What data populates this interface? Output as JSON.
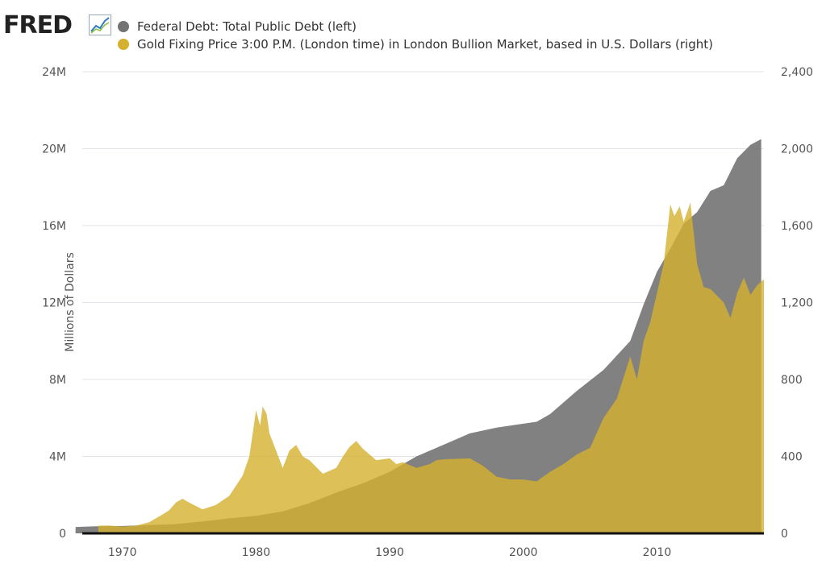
{
  "logo": {
    "text": "FRED",
    "icon": "fred-chart-icon"
  },
  "chart_data": {
    "type": "area",
    "title": "",
    "series": [
      {
        "name": "Federal Debt: Total Public Debt (left)",
        "axis": "left",
        "color": "#737373",
        "x": [
          1966.5,
          1968,
          1970,
          1972,
          1974,
          1976,
          1978,
          1980,
          1982,
          1984,
          1986,
          1988,
          1990,
          1992,
          1994,
          1996,
          1998,
          2000,
          2001,
          2002,
          2004,
          2006,
          2008,
          2009,
          2010,
          2011,
          2012,
          2013,
          2014,
          2015,
          2016,
          2017,
          2017.8
        ],
        "values": [
          0.33,
          0.37,
          0.38,
          0.43,
          0.48,
          0.62,
          0.78,
          0.91,
          1.14,
          1.57,
          2.12,
          2.6,
          3.2,
          4.0,
          4.6,
          5.2,
          5.5,
          5.7,
          5.8,
          6.2,
          7.4,
          8.5,
          10.0,
          11.9,
          13.6,
          14.8,
          16.1,
          16.7,
          17.8,
          18.1,
          19.5,
          20.2,
          20.5
        ]
      },
      {
        "name": "Gold Fixing Price 3:00 P.M. (London time) in London Bullion Market, based in U.S. Dollars (right)",
        "axis": "right",
        "color": "#D4B02E",
        "x": [
          1968.2,
          1969,
          1970,
          1971,
          1972,
          1973,
          1973.5,
          1974,
          1974.5,
          1975,
          1976,
          1977,
          1978,
          1979,
          1979.5,
          1980,
          1980.3,
          1980.5,
          1980.8,
          1981,
          1981.5,
          1982,
          1982.5,
          1983,
          1983.5,
          1984,
          1985,
          1986,
          1986.5,
          1987,
          1987.5,
          1988,
          1989,
          1990,
          1990.5,
          1991,
          1992,
          1993,
          1993.5,
          1994,
          1996,
          1997,
          1998,
          1999,
          2000,
          2001,
          2002,
          2003,
          2004,
          2005,
          2006,
          2007,
          2008,
          2008.5,
          2009,
          2009.5,
          2010,
          2010.5,
          2011,
          2011.3,
          2011.7,
          2012,
          2012.5,
          2013,
          2013.5,
          2014,
          2015,
          2015.5,
          2016,
          2016.5,
          2017,
          2017.5,
          2018
        ],
        "values": [
          40,
          41,
          35,
          40,
          58,
          98,
          120,
          160,
          180,
          160,
          125,
          148,
          195,
          300,
          400,
          640,
          560,
          660,
          620,
          520,
          430,
          340,
          430,
          460,
          400,
          380,
          310,
          340,
          400,
          450,
          480,
          440,
          380,
          390,
          360,
          370,
          340,
          360,
          380,
          385,
          390,
          350,
          295,
          280,
          280,
          270,
          320,
          360,
          410,
          445,
          600,
          700,
          920,
          800,
          1000,
          1100,
          1250,
          1400,
          1710,
          1650,
          1700,
          1620,
          1720,
          1400,
          1280,
          1270,
          1200,
          1120,
          1250,
          1330,
          1240,
          1290,
          1320
        ]
      }
    ],
    "y_left": {
      "label": "Millions of Dollars",
      "min": 0,
      "max": 24,
      "ticks": [
        "0",
        "4M",
        "8M",
        "12M",
        "16M",
        "20M",
        "24M"
      ]
    },
    "y_right": {
      "label": "",
      "min": 0,
      "max": 2400,
      "ticks": [
        "0",
        "400",
        "800",
        "1,200",
        "1,600",
        "2,000",
        "2,400"
      ]
    },
    "x_axis": {
      "min": 1967,
      "max": 2018,
      "ticks": [
        "1970",
        "1980",
        "1990",
        "2000",
        "2010"
      ]
    },
    "grid": true,
    "legend_position": "top-left"
  }
}
